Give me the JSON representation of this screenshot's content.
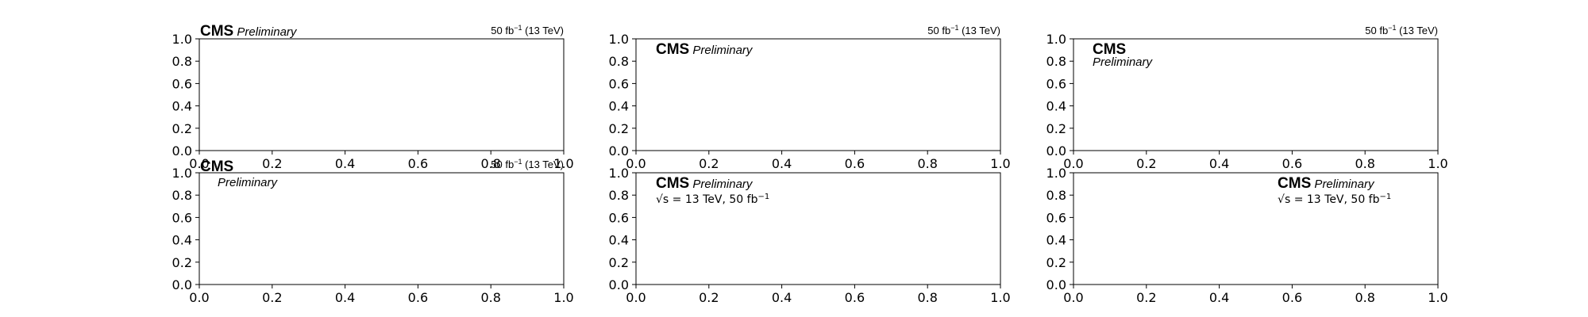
{
  "chart_data": [
    {
      "type": "scatter",
      "series": [],
      "xlim": [
        0,
        1
      ],
      "ylim": [
        0,
        1
      ],
      "ticks": [
        "0.0",
        "0.2",
        "0.4",
        "0.6",
        "0.8",
        "1.0"
      ],
      "label": {
        "cms": "CMS",
        "extra": "Preliminary",
        "lumi": "50 fb",
        "lumi_exp": "−1",
        "lumi_suffix": " (13 TeV)",
        "placement": "outside-left"
      }
    },
    {
      "type": "scatter",
      "series": [],
      "xlim": [
        0,
        1
      ],
      "ylim": [
        0,
        1
      ],
      "ticks": [
        "0.0",
        "0.2",
        "0.4",
        "0.6",
        "0.8",
        "1.0"
      ],
      "label": {
        "cms": "CMS",
        "extra": "Preliminary",
        "lumi": "50 fb",
        "lumi_exp": "−1",
        "lumi_suffix": " (13 TeV)",
        "placement": "inside-top-left"
      }
    },
    {
      "type": "scatter",
      "series": [],
      "xlim": [
        0,
        1
      ],
      "ylim": [
        0,
        1
      ],
      "ticks": [
        "0.0",
        "0.2",
        "0.4",
        "0.6",
        "0.8",
        "1.0"
      ],
      "label": {
        "cms": "CMS",
        "extra": "Preliminary",
        "lumi": "50 fb",
        "lumi_exp": "−1",
        "lumi_suffix": " (13 TeV)",
        "placement": "inside-stacked"
      }
    },
    {
      "type": "scatter",
      "series": [],
      "xlim": [
        0,
        1
      ],
      "ylim": [
        0,
        1
      ],
      "ticks": [
        "0.0",
        "0.2",
        "0.4",
        "0.6",
        "0.8",
        "1.0"
      ],
      "label": {
        "cms": "CMS",
        "extra": "Preliminary",
        "lumi": "50 fb",
        "lumi_exp": "−1",
        "lumi_suffix": " (13 TeV)",
        "placement": "outside-stacked"
      }
    },
    {
      "type": "scatter",
      "series": [],
      "xlim": [
        0,
        1
      ],
      "ylim": [
        0,
        1
      ],
      "ticks": [
        "0.0",
        "0.2",
        "0.4",
        "0.6",
        "0.8",
        "1.0"
      ],
      "label": {
        "cms": "CMS",
        "extra": "Preliminary",
        "energy": "√s = 13 TeV, 50 fb",
        "energy_exp": "−1",
        "placement": "inside-top-left"
      }
    },
    {
      "type": "scatter",
      "series": [],
      "xlim": [
        0,
        1
      ],
      "ylim": [
        0,
        1
      ],
      "ticks": [
        "0.0",
        "0.2",
        "0.4",
        "0.6",
        "0.8",
        "1.0"
      ],
      "label": {
        "cms": "CMS",
        "extra": "Preliminary",
        "energy": "√s = 13 TeV, 50 fb",
        "energy_exp": "−1",
        "placement": "inside-top-right"
      }
    }
  ]
}
